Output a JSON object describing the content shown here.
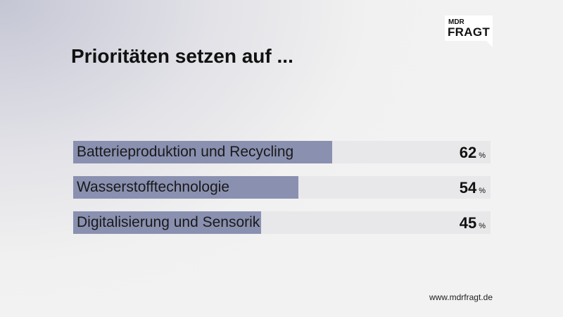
{
  "title": "Prioritäten setzen auf ...",
  "logo": {
    "line1": "MDR",
    "line2": "FRAGT"
  },
  "footer": "www.mdrfragt.de",
  "colors": {
    "bar": "#8a90b0",
    "track": "#e8e8ea"
  },
  "chart_data": {
    "type": "bar",
    "orientation": "horizontal",
    "title": "Prioritäten setzen auf ...",
    "categories": [
      "Batterieproduktion und Recycling",
      "Wasserstofftechnologie",
      "Digitalisierung und Sensorik"
    ],
    "values": [
      62,
      54,
      45
    ],
    "unit": "%",
    "xlim": [
      0,
      100
    ]
  }
}
